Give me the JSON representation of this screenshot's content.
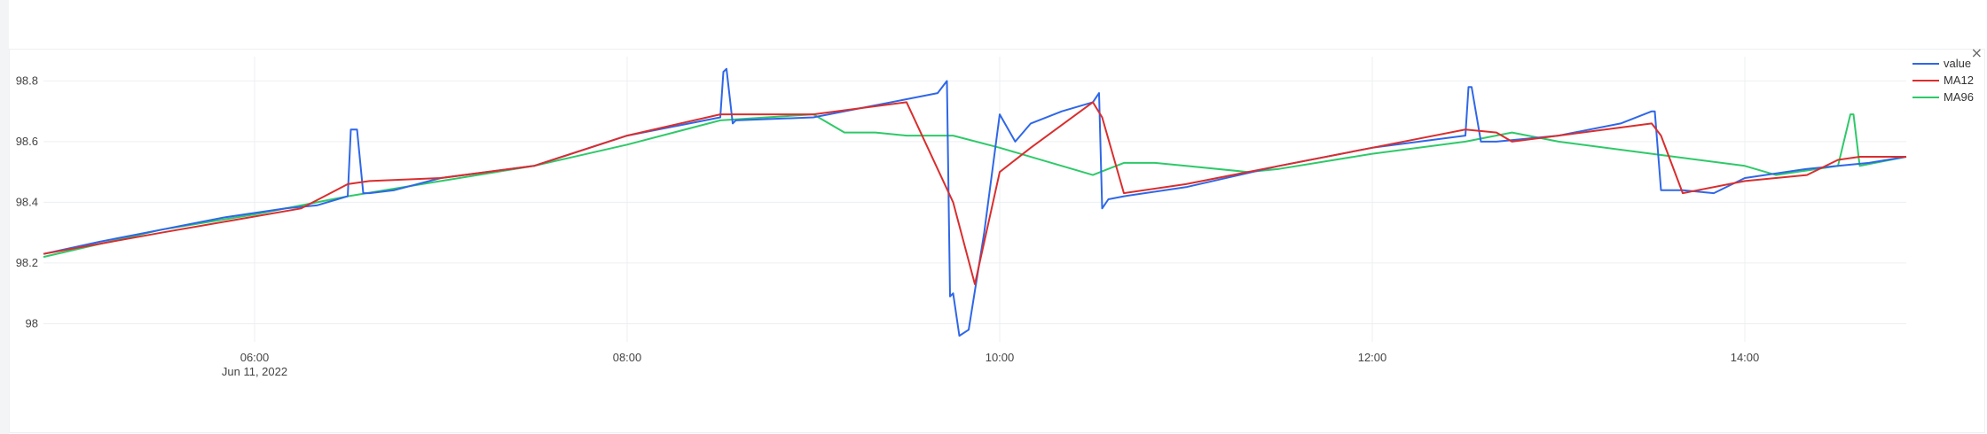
{
  "close_glyph": "×",
  "chart_data": {
    "type": "line",
    "title": "",
    "xlabel": "",
    "ylabel": "",
    "x_range": [
      "2022-06-11 04:52",
      "2022-06-11 14:52"
    ],
    "ylim": [
      97.94,
      98.88
    ],
    "grid": true,
    "legend_placement": "top-right",
    "y_ticks": [
      98,
      98.2,
      98.4,
      98.6,
      98.8
    ],
    "y_tick_labels": [
      "98",
      "98.2",
      "98.4",
      "98.6",
      "98.8"
    ],
    "x_ticks": [
      "06:00",
      "08:00",
      "10:00",
      "12:00",
      "14:00"
    ],
    "x_tick_labels": [
      "06:00",
      "08:00",
      "10:00",
      "12:00",
      "14:00"
    ],
    "x_date_label": "Jun 11, 2022",
    "colors": {
      "value": "#2f67e8",
      "MA12": "#d92e2e",
      "MA96": "#2ec969"
    },
    "series": [
      {
        "name": "value",
        "x": [
          "04:52",
          "05:10",
          "05:30",
          "05:50",
          "06:10",
          "06:20",
          "06:30",
          "06:31",
          "06:33",
          "06:35",
          "06:37",
          "06:45",
          "07:00",
          "07:30",
          "08:00",
          "08:30",
          "08:31",
          "08:32",
          "08:34",
          "08:35",
          "09:00",
          "09:30",
          "09:40",
          "09:43",
          "09:44",
          "09:45",
          "09:47",
          "09:50",
          "09:55",
          "10:00",
          "10:05",
          "10:10",
          "10:20",
          "10:30",
          "10:32",
          "10:33",
          "10:35",
          "10:40",
          "11:00",
          "11:30",
          "12:00",
          "12:30",
          "12:31",
          "12:32",
          "12:35",
          "12:40",
          "13:00",
          "13:20",
          "13:30",
          "13:31",
          "13:33",
          "13:36",
          "13:40",
          "13:50",
          "14:00",
          "14:20",
          "14:30",
          "14:40",
          "14:52"
        ],
        "y": [
          98.23,
          98.27,
          98.31,
          98.35,
          98.38,
          98.39,
          98.42,
          98.64,
          98.64,
          98.43,
          98.43,
          98.44,
          98.48,
          98.52,
          98.62,
          98.68,
          98.83,
          98.84,
          98.66,
          98.67,
          98.68,
          98.74,
          98.76,
          98.8,
          98.09,
          98.1,
          97.96,
          97.98,
          98.3,
          98.69,
          98.6,
          98.66,
          98.7,
          98.73,
          98.76,
          98.38,
          98.41,
          98.42,
          98.45,
          98.52,
          98.58,
          98.62,
          98.78,
          98.78,
          98.6,
          98.6,
          98.62,
          98.66,
          98.7,
          98.7,
          98.44,
          98.44,
          98.44,
          98.43,
          98.48,
          98.51,
          98.52,
          98.53,
          98.55
        ]
      },
      {
        "name": "MA12",
        "x": [
          "04:52",
          "05:30",
          "06:15",
          "06:30",
          "06:37",
          "07:00",
          "07:30",
          "08:00",
          "08:30",
          "09:00",
          "09:30",
          "09:45",
          "09:52",
          "10:00",
          "10:10",
          "10:30",
          "10:33",
          "10:40",
          "11:00",
          "11:30",
          "12:00",
          "12:30",
          "12:40",
          "12:45",
          "13:00",
          "13:30",
          "13:33",
          "13:40",
          "14:00",
          "14:20",
          "14:30",
          "14:37",
          "14:40",
          "14:52"
        ],
        "y": [
          98.23,
          98.3,
          98.38,
          98.46,
          98.47,
          98.48,
          98.52,
          98.62,
          98.69,
          98.69,
          98.73,
          98.4,
          98.13,
          98.5,
          98.58,
          98.73,
          98.68,
          98.43,
          98.46,
          98.52,
          98.58,
          98.64,
          98.63,
          98.6,
          98.62,
          98.66,
          98.62,
          98.43,
          98.47,
          98.49,
          98.54,
          98.55,
          98.55,
          98.55
        ]
      },
      {
        "name": "MA96",
        "x": [
          "04:52",
          "05:30",
          "06:00",
          "06:30",
          "07:00",
          "07:30",
          "08:00",
          "08:30",
          "09:00",
          "09:10",
          "09:20",
          "09:30",
          "09:45",
          "10:00",
          "10:20",
          "10:30",
          "10:35",
          "10:40",
          "10:50",
          "11:00",
          "11:20",
          "11:30",
          "12:00",
          "12:30",
          "12:45",
          "13:00",
          "13:30",
          "14:00",
          "14:10",
          "14:30",
          "14:34",
          "14:35",
          "14:37",
          "14:52"
        ],
        "y": [
          98.22,
          98.31,
          98.36,
          98.42,
          98.47,
          98.52,
          98.59,
          98.67,
          98.69,
          98.63,
          98.63,
          98.62,
          98.62,
          98.58,
          98.52,
          98.49,
          98.51,
          98.53,
          98.53,
          98.52,
          98.5,
          98.51,
          98.56,
          98.6,
          98.63,
          98.6,
          98.56,
          98.52,
          98.49,
          98.52,
          98.69,
          98.69,
          98.52,
          98.55
        ]
      }
    ]
  }
}
